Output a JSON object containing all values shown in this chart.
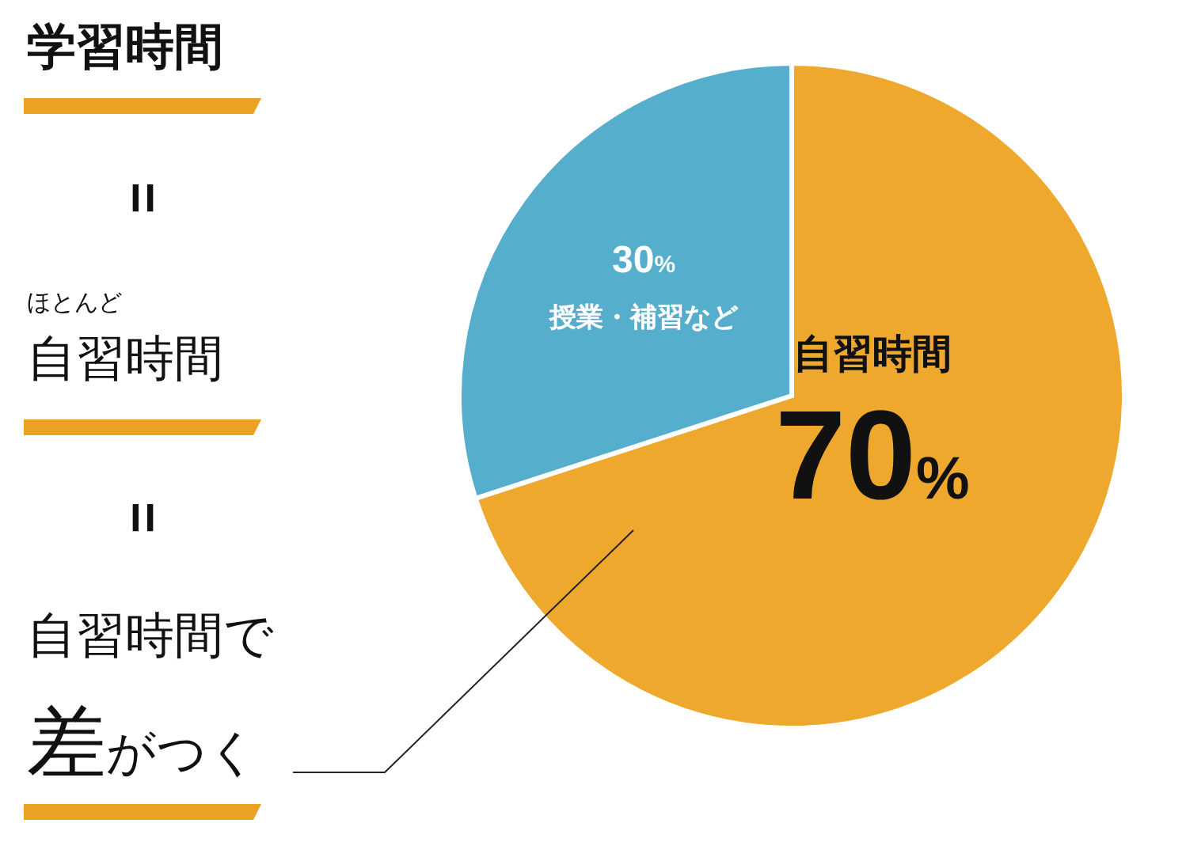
{
  "chart_data": {
    "type": "pie",
    "categories": [
      "自習時間",
      "授業・補習など"
    ],
    "values": [
      70,
      30
    ],
    "colors": [
      "#eea82d",
      "#56aecd"
    ],
    "value_labels": [
      "70%",
      "30%"
    ],
    "annotations": [
      "学習時間",
      "=",
      "ほとんど",
      "自習時間",
      "=",
      "自習時間で",
      "差がつく"
    ]
  }
}
